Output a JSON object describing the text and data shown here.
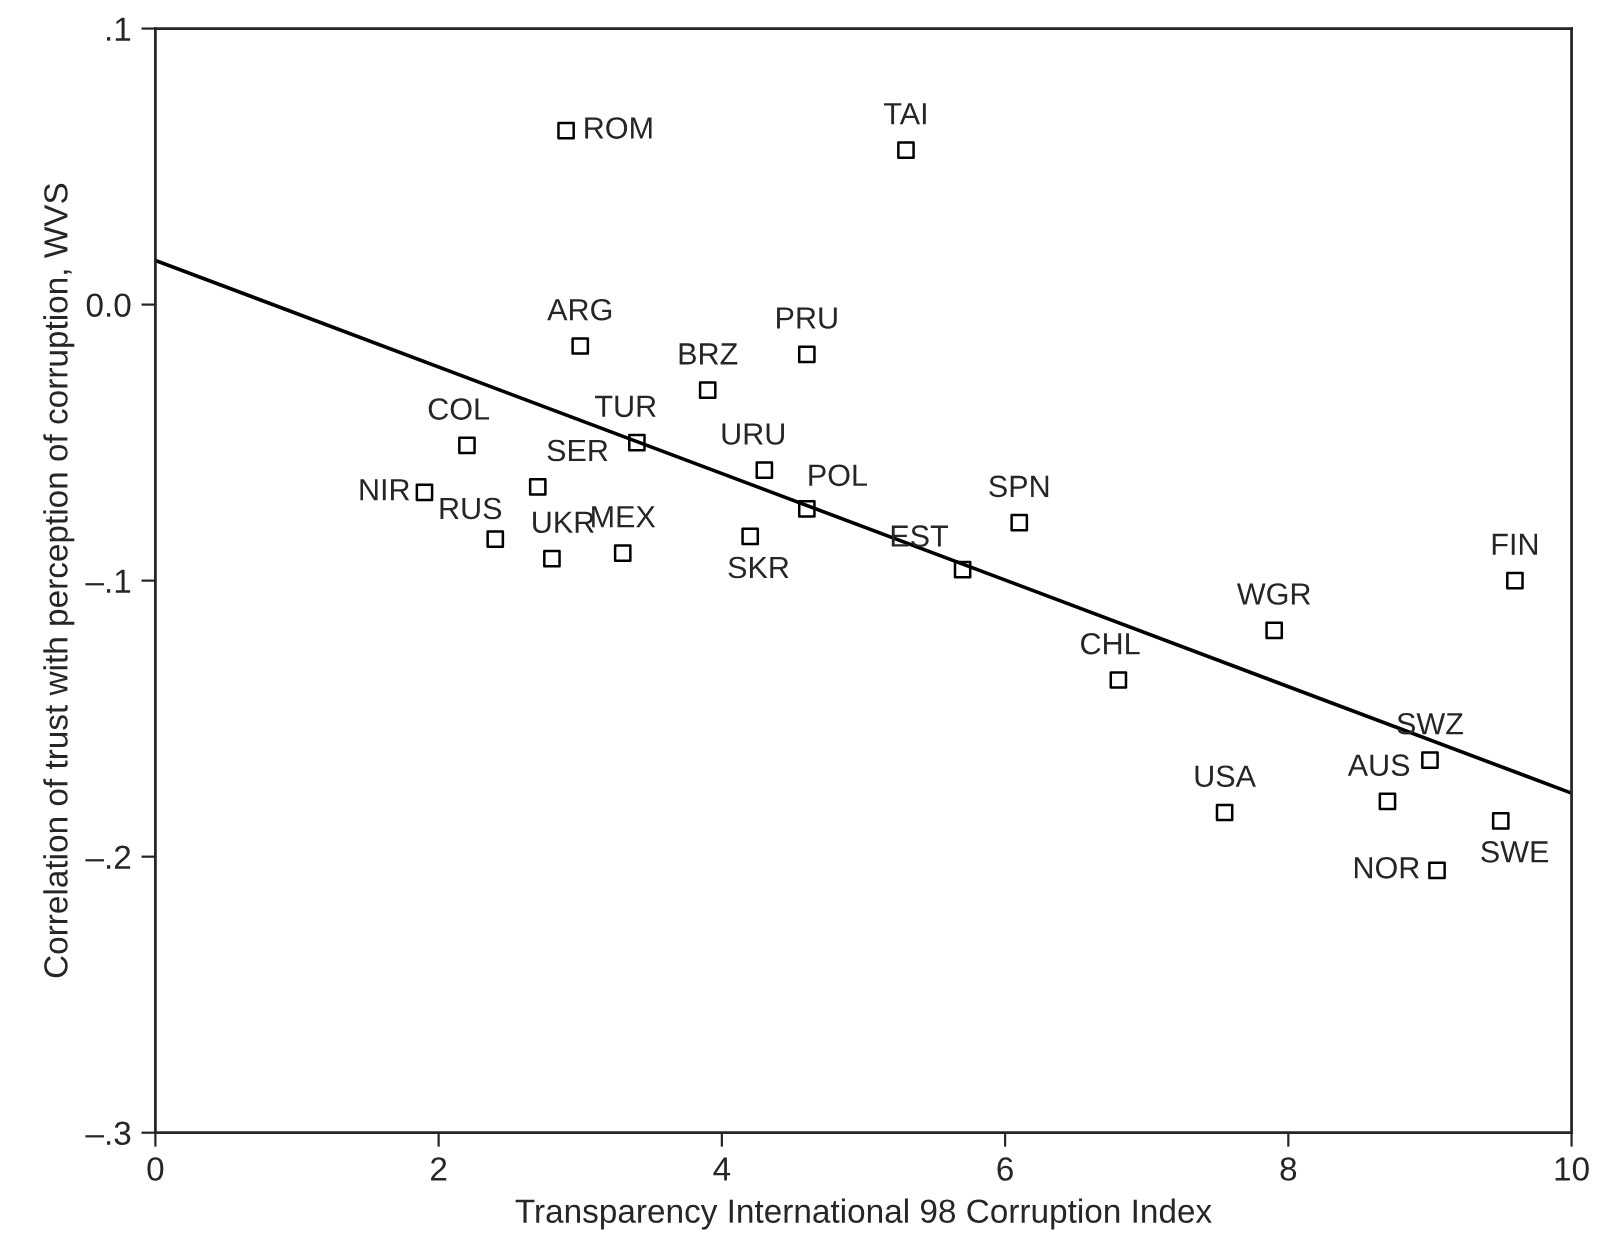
{
  "chart_data": {
    "type": "scatter",
    "xlabel": "Transparency International 98 Corruption Index",
    "ylabel": "Correlation of trust with perception of corruption, WVS",
    "xlim": [
      0,
      10
    ],
    "ylim": [
      -0.3,
      0.1
    ],
    "xticks": [
      0,
      2,
      4,
      6,
      8,
      10
    ],
    "yticks": [
      {
        "value": -0.3,
        "label": "–.3"
      },
      {
        "value": -0.2,
        "label": "–.2"
      },
      {
        "value": -0.1,
        "label": "–.1"
      },
      {
        "value": 0.0,
        "label": "0.0"
      },
      {
        "value": 0.1,
        "label": ".1"
      }
    ],
    "grid": false,
    "series": [
      {
        "marker": "square",
        "color": "#000000",
        "x": [
          2.9,
          5.3,
          3.0,
          4.6,
          3.9,
          3.4,
          2.2,
          4.3,
          1.9,
          2.7,
          4.6,
          6.1,
          2.4,
          4.2,
          3.3,
          2.8,
          5.7,
          9.6,
          7.9,
          6.8,
          9.0,
          8.7,
          7.55,
          9.5,
          9.05
        ],
        "values": [
          0.063,
          0.056,
          -0.015,
          -0.018,
          -0.031,
          -0.05,
          -0.051,
          -0.06,
          -0.068,
          -0.066,
          -0.074,
          -0.079,
          -0.085,
          -0.084,
          -0.09,
          -0.092,
          -0.096,
          -0.1,
          -0.118,
          -0.136,
          -0.165,
          -0.18,
          -0.184,
          -0.187,
          -0.205
        ]
      },
      {
        "type": "line",
        "color": "#000000",
        "x": [
          0,
          10
        ],
        "values": [
          0.016,
          -0.177
        ]
      }
    ],
    "annotations": [
      {
        "text": "ROM",
        "x": 2.9,
        "y": 0.063
      },
      {
        "text": "TAI",
        "x": 5.3,
        "y": 0.056
      },
      {
        "text": "ARG",
        "x": 3.0,
        "y": -0.015
      },
      {
        "text": "PRU",
        "x": 4.6,
        "y": -0.018
      },
      {
        "text": "BRZ",
        "x": 3.9,
        "y": -0.031
      },
      {
        "text": "TUR",
        "x": 3.4,
        "y": -0.05
      },
      {
        "text": "COL",
        "x": 2.2,
        "y": -0.051
      },
      {
        "text": "URU",
        "x": 4.3,
        "y": -0.06
      },
      {
        "text": "NIR",
        "x": 1.9,
        "y": -0.068
      },
      {
        "text": "SER",
        "x": 2.7,
        "y": -0.066
      },
      {
        "text": "POL",
        "x": 4.6,
        "y": -0.074
      },
      {
        "text": "SPN",
        "x": 6.1,
        "y": -0.079
      },
      {
        "text": "RUS",
        "x": 2.4,
        "y": -0.085
      },
      {
        "text": "SKR",
        "x": 4.2,
        "y": -0.084
      },
      {
        "text": "MEX",
        "x": 3.3,
        "y": -0.09
      },
      {
        "text": "UKR",
        "x": 2.8,
        "y": -0.092
      },
      {
        "text": "EST",
        "x": 5.7,
        "y": -0.096
      },
      {
        "text": "FIN",
        "x": 9.6,
        "y": -0.1
      },
      {
        "text": "WGR",
        "x": 7.9,
        "y": -0.118
      },
      {
        "text": "CHL",
        "x": 6.8,
        "y": -0.136
      },
      {
        "text": "SWZ",
        "x": 9.0,
        "y": -0.165
      },
      {
        "text": "AUS",
        "x": 8.7,
        "y": -0.18
      },
      {
        "text": "USA",
        "x": 7.55,
        "y": -0.184
      },
      {
        "text": "SWE",
        "x": 9.5,
        "y": -0.187
      },
      {
        "text": "NOR",
        "x": 9.05,
        "y": -0.205
      }
    ]
  }
}
